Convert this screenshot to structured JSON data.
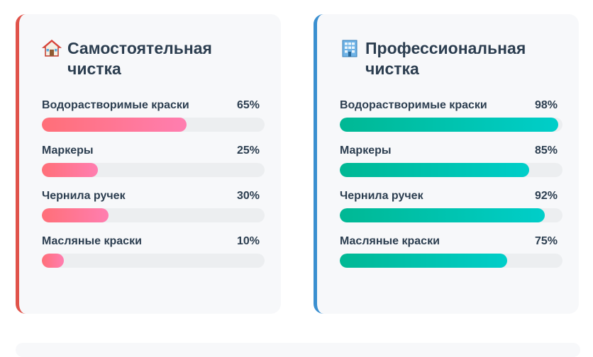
{
  "cards": [
    {
      "title": "Самостоятельная чистка",
      "icon": "house-icon",
      "accent": "#e0534a",
      "stats": [
        {
          "label": "Водорастворимые краски",
          "value_text": "65%",
          "value": 65
        },
        {
          "label": "Маркеры",
          "value_text": "25%",
          "value": 25
        },
        {
          "label": "Чернила ручек",
          "value_text": "30%",
          "value": 30
        },
        {
          "label": "Масляные краски",
          "value_text": "10%",
          "value": 10
        }
      ]
    },
    {
      "title": "Профессиональная чистка",
      "icon": "office-building-icon",
      "accent": "#3a8fd0",
      "stats": [
        {
          "label": "Водорастворимые краски",
          "value_text": "98%",
          "value": 98
        },
        {
          "label": "Маркеры",
          "value_text": "85%",
          "value": 85
        },
        {
          "label": "Чернила ручек",
          "value_text": "92%",
          "value": 92
        },
        {
          "label": "Масляные краски",
          "value_text": "75%",
          "value": 75
        }
      ]
    }
  ]
}
